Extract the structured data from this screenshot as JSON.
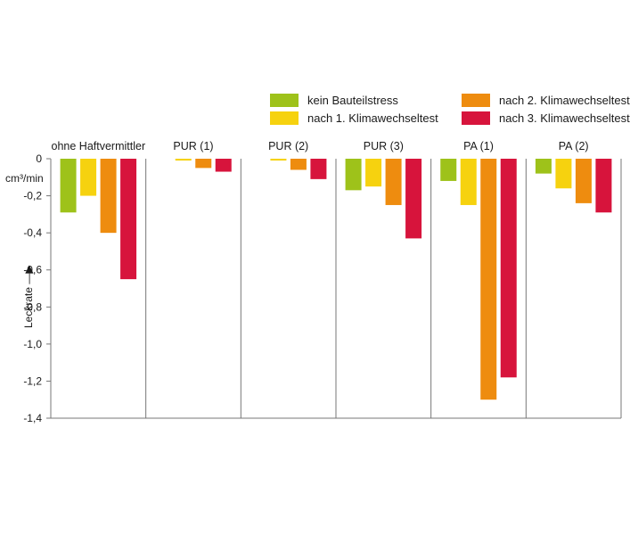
{
  "chart_data": {
    "type": "bar",
    "ylabel": "Leckrate",
    "yunit": "cm³/min",
    "ylim": [
      -1.4,
      0
    ],
    "yticks": [
      0,
      -0.2,
      -0.4,
      -0.6,
      -0.8,
      -1.0,
      -1.2,
      -1.4
    ],
    "ytick_labels": [
      "0",
      "-0,2",
      "-0,4",
      "-0,6",
      "-0,8",
      "-1,0",
      "-1,2",
      "-1,4"
    ],
    "categories": [
      "ohne Haftvermittler",
      "PUR (1)",
      "PUR (2)",
      "PUR (3)",
      "PA (1)",
      "PA (2)"
    ],
    "legend_position": "top-right",
    "grid": false,
    "series": [
      {
        "name": "kein Bauteilstress",
        "color": "#9ec21a",
        "values": [
          -0.29,
          0,
          0,
          -0.17,
          -0.12,
          -0.08
        ]
      },
      {
        "name": "nach 1. Klimawechseltest",
        "color": "#f6d20f",
        "values": [
          -0.2,
          -0.01,
          -0.01,
          -0.15,
          -0.25,
          -0.16
        ]
      },
      {
        "name": "nach 2. Klimawechseltest",
        "color": "#ee8c0f",
        "values": [
          -0.4,
          -0.05,
          -0.06,
          -0.25,
          -1.3,
          -0.24
        ]
      },
      {
        "name": "nach 3. Klimawechseltest",
        "color": "#d7143c",
        "values": [
          -0.65,
          -0.07,
          -0.11,
          -0.43,
          -1.18,
          -0.29
        ]
      }
    ]
  }
}
